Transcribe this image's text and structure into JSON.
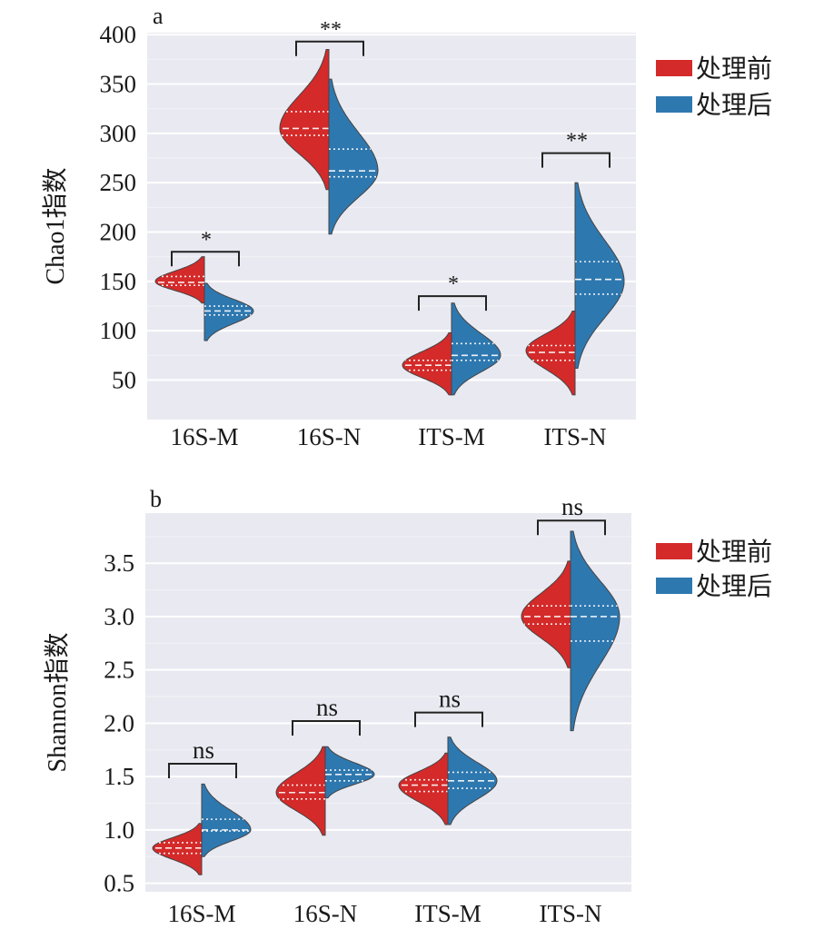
{
  "colors": {
    "before": "#d42a2a",
    "after": "#2e78b0",
    "panel_bg": "#e9e9f1",
    "grid": "#ffffff"
  },
  "chart_data": [
    {
      "type": "violin",
      "panel_label": "a",
      "ylabel": "Chao1指数",
      "xlabel": "",
      "ylim": [
        10,
        402
      ],
      "yticks": [
        50,
        100,
        150,
        200,
        250,
        300,
        350,
        400
      ],
      "ytick_labels": [
        "50",
        "100",
        "150",
        "200",
        "250",
        "300",
        "350",
        "400"
      ],
      "categories": [
        "16S-M",
        "16S-N",
        "ITS-M",
        "ITS-N"
      ],
      "legend": {
        "position": "right",
        "entries": [
          "处理前",
          "处理后"
        ]
      },
      "series": [
        {
          "name": "处理前",
          "violins": [
            {
              "min": 128,
              "max": 175,
              "mode": 150,
              "q1": 146,
              "median": 149,
              "q3": 155
            },
            {
              "min": 243,
              "max": 385,
              "mode": 305,
              "q1": 298,
              "median": 305,
              "q3": 322
            },
            {
              "min": 35,
              "max": 98,
              "mode": 65,
              "q1": 60,
              "median": 65,
              "q3": 70
            },
            {
              "min": 35,
              "max": 120,
              "mode": 80,
              "q1": 70,
              "median": 78,
              "q3": 85
            }
          ]
        },
        {
          "name": "处理后",
          "violins": [
            {
              "min": 90,
              "max": 148,
              "mode": 120,
              "q1": 116,
              "median": 120,
              "q3": 125
            },
            {
              "min": 198,
              "max": 355,
              "mode": 262,
              "q1": 256,
              "median": 262,
              "q3": 284
            },
            {
              "min": 35,
              "max": 128,
              "mode": 75,
              "q1": 70,
              "median": 75,
              "q3": 87
            },
            {
              "min": 62,
              "max": 250,
              "mode": 150,
              "q1": 137,
              "median": 152,
              "q3": 170
            }
          ]
        }
      ],
      "significance": [
        {
          "label": "*",
          "level": 180
        },
        {
          "label": "**",
          "level": 393
        },
        {
          "label": "*",
          "level": 135
        },
        {
          "label": "**",
          "level": 280
        }
      ]
    },
    {
      "type": "violin",
      "panel_label": "b",
      "ylabel": "Shannon指数",
      "xlabel": "",
      "ylim": [
        0.42,
        3.97
      ],
      "yticks": [
        0.5,
        1.0,
        1.5,
        2.0,
        2.5,
        3.0,
        3.5
      ],
      "ytick_labels": [
        "0.5",
        "1.0",
        "1.5",
        "2.0",
        "2.5",
        "3.0",
        "3.5"
      ],
      "categories": [
        "16S-M",
        "16S-N",
        "ITS-M",
        "ITS-N"
      ],
      "legend": {
        "position": "right",
        "entries": [
          "处理前",
          "处理后"
        ]
      },
      "series": [
        {
          "name": "处理前",
          "violins": [
            {
              "min": 0.58,
              "max": 1.06,
              "mode": 0.83,
              "q1": 0.78,
              "median": 0.83,
              "q3": 0.88
            },
            {
              "min": 0.95,
              "max": 1.78,
              "mode": 1.35,
              "q1": 1.29,
              "median": 1.35,
              "q3": 1.42
            },
            {
              "min": 1.05,
              "max": 1.72,
              "mode": 1.42,
              "q1": 1.36,
              "median": 1.42,
              "q3": 1.47
            },
            {
              "min": 2.52,
              "max": 3.52,
              "mode": 3.0,
              "q1": 2.93,
              "median": 3.0,
              "q3": 3.1
            }
          ]
        },
        {
          "name": "处理后",
          "violins": [
            {
              "min": 0.75,
              "max": 1.43,
              "mode": 1.0,
              "q1": 0.99,
              "median": 1.0,
              "q3": 1.1
            },
            {
              "min": 1.3,
              "max": 1.78,
              "mode": 1.52,
              "q1": 1.46,
              "median": 1.52,
              "q3": 1.56
            },
            {
              "min": 1.05,
              "max": 1.87,
              "mode": 1.46,
              "q1": 1.39,
              "median": 1.46,
              "q3": 1.54
            },
            {
              "min": 1.93,
              "max": 3.8,
              "mode": 3.0,
              "q1": 2.77,
              "median": 3.0,
              "q3": 3.1
            }
          ]
        }
      ],
      "significance": [
        {
          "label": "ns",
          "level": 1.62
        },
        {
          "label": "ns",
          "level": 2.02
        },
        {
          "label": "ns",
          "level": 2.1
        },
        {
          "label": "ns",
          "level": 3.9
        }
      ]
    }
  ]
}
